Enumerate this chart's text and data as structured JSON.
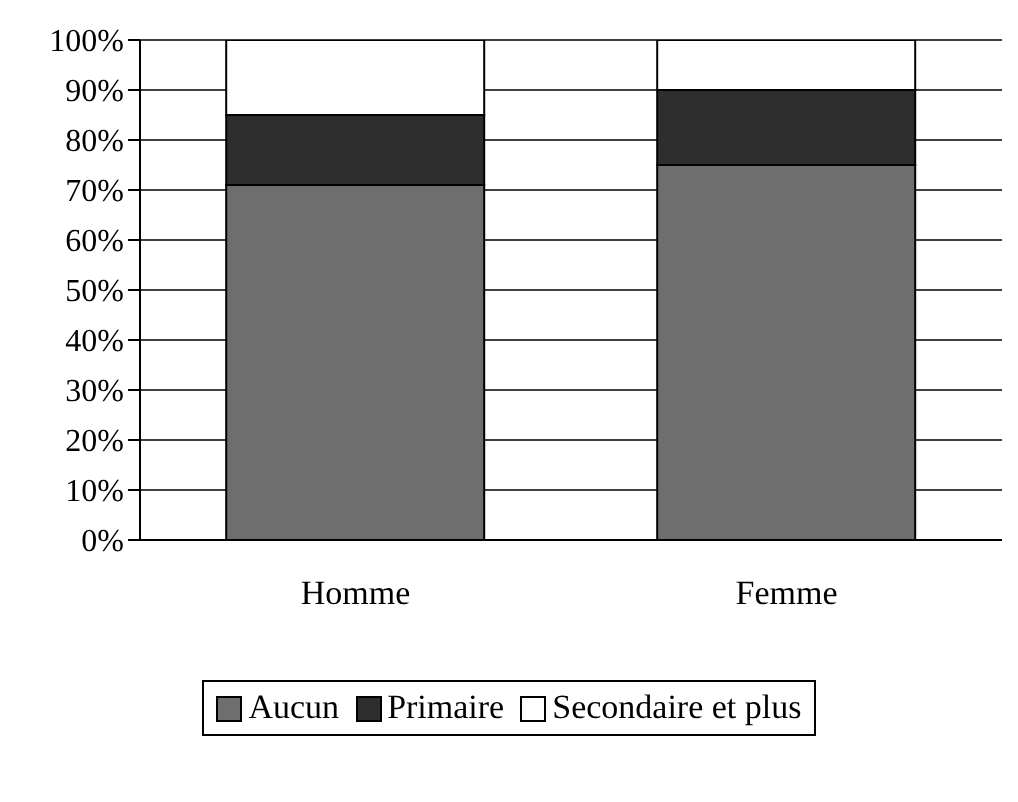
{
  "chart_data": {
    "type": "bar",
    "stacked": true,
    "categories": [
      "Homme",
      "Femme"
    ],
    "series": [
      {
        "name": "Aucun",
        "color": "#6e6e6e",
        "values": [
          71,
          75
        ]
      },
      {
        "name": "Primaire",
        "color": "#2e2e2e",
        "values": [
          14,
          15
        ]
      },
      {
        "name": "Secondaire et plus",
        "color": "#ffffff",
        "values": [
          15,
          10
        ]
      }
    ],
    "ylim": [
      0,
      100
    ],
    "yticks": [
      {
        "value": 0,
        "label": "0%"
      },
      {
        "value": 10,
        "label": "10%"
      },
      {
        "value": 20,
        "label": "20%"
      },
      {
        "value": 30,
        "label": "30%"
      },
      {
        "value": 40,
        "label": "40%"
      },
      {
        "value": 50,
        "label": "50%"
      },
      {
        "value": 60,
        "label": "60%"
      },
      {
        "value": 70,
        "label": "70%"
      },
      {
        "value": 80,
        "label": "80%"
      },
      {
        "value": 90,
        "label": "90%"
      },
      {
        "value": 100,
        "label": "100%"
      }
    ],
    "grid": "y",
    "legend": "bottom"
  }
}
